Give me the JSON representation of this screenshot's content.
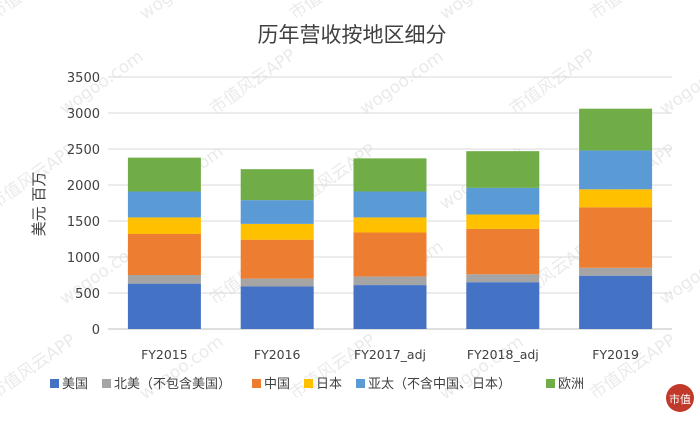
{
  "chart_data": {
    "type": "bar",
    "stacked": true,
    "title": "历年营收按地区细分",
    "ylabel": "美元 百万",
    "xlabel": "",
    "ylim": [
      0,
      3500
    ],
    "yticks": [
      0,
      500,
      1000,
      1500,
      2000,
      2500,
      3000,
      3500
    ],
    "grid": true,
    "legend_position": "bottom",
    "categories": [
      "FY2015",
      "FY2016",
      "FY2017_adj",
      "FY2018_adj",
      "FY2019"
    ],
    "series": [
      {
        "name": "美国",
        "color": "#4472c4",
        "values": [
          630,
          590,
          610,
          650,
          740
        ]
      },
      {
        "name": "北美（不包含美国）",
        "color": "#a5a5a5",
        "values": [
          120,
          110,
          120,
          110,
          110
        ]
      },
      {
        "name": "中国",
        "color": "#ed7d31",
        "values": [
          570,
          540,
          610,
          630,
          840
        ]
      },
      {
        "name": "日本",
        "color": "#ffc000",
        "values": [
          230,
          220,
          210,
          200,
          250
        ]
      },
      {
        "name": "亚太（不含中国、日本）",
        "color": "#5b9bd5",
        "values": [
          360,
          330,
          360,
          370,
          540
        ]
      },
      {
        "name": "欧洲",
        "color": "#70ad47",
        "values": [
          470,
          430,
          460,
          510,
          580
        ]
      }
    ]
  },
  "watermark": {
    "text_cn": "市值风云APP",
    "text_url": "wogoo.com",
    "logo_text": "市值",
    "logo_color": "#c0392b"
  }
}
